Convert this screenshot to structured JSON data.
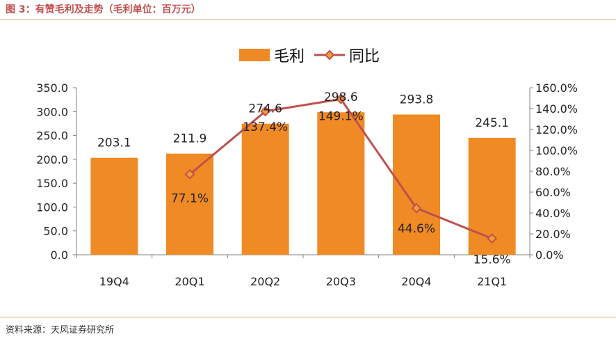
{
  "header": {
    "title": "图 3：有赞毛利及走势（毛利单位：百万元）"
  },
  "footer": {
    "source": "资料来源：天风证券研究所"
  },
  "chart_data": {
    "type": "bar",
    "categories": [
      "19Q4",
      "20Q1",
      "20Q2",
      "20Q3",
      "20Q4",
      "21Q1"
    ],
    "series": [
      {
        "name": "毛利",
        "kind": "bar",
        "axis": "left",
        "color": "#f08a24",
        "values": [
          203.1,
          211.9,
          274.6,
          298.6,
          293.8,
          245.1
        ],
        "labels": [
          "203.1",
          "211.9",
          "274.6",
          "298.6",
          "293.8",
          "245.1"
        ]
      },
      {
        "name": "同比",
        "kind": "line",
        "axis": "right",
        "color": "#c0504d",
        "values": [
          null,
          77.1,
          137.4,
          149.1,
          44.6,
          15.6
        ],
        "labels": [
          "",
          "77.1%",
          "137.4%",
          "149.1%",
          "44.6%",
          "15.6%"
        ]
      }
    ],
    "y_left": {
      "min": 0,
      "max": 350,
      "ticks": [
        "0.0",
        "50.0",
        "100.0",
        "150.0",
        "200.0",
        "250.0",
        "300.0",
        "350.0"
      ]
    },
    "y_right": {
      "min": 0,
      "max": 160,
      "ticks": [
        "0.0%",
        "20.0%",
        "40.0%",
        "60.0%",
        "80.0%",
        "100.0%",
        "120.0%",
        "140.0%",
        "160.0%"
      ]
    },
    "legend_position": "top-center",
    "grid": false
  }
}
